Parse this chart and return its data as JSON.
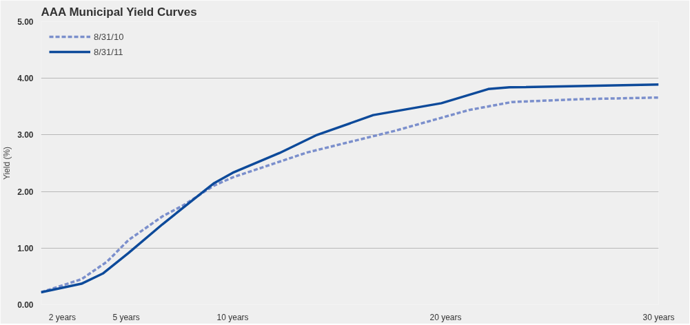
{
  "chart_data": {
    "type": "line",
    "title": "AAA Municipal Yield Curves",
    "ylabel": "Yield (%)",
    "xlim": [
      1,
      30
    ],
    "xticks": [
      {
        "value": 2,
        "label": "2 years"
      },
      {
        "value": 5,
        "label": "5 years"
      },
      {
        "value": 10,
        "label": "10 years"
      },
      {
        "value": 20,
        "label": "20 years"
      },
      {
        "value": 30,
        "label": "30 years"
      }
    ],
    "ylim": [
      0,
      5
    ],
    "yticks": [
      {
        "value": 0,
        "label": "0.00"
      },
      {
        "value": 1,
        "label": "1.00"
      },
      {
        "value": 2,
        "label": "2.00"
      },
      {
        "value": 3,
        "label": "3.00"
      },
      {
        "value": 4,
        "label": "4.00"
      },
      {
        "value": 5,
        "label": "5.00"
      }
    ],
    "grid": "y",
    "legend": "top left",
    "marker": "none",
    "series": [
      {
        "name": "8/31/10",
        "color": "#7b8fcc",
        "line_style": "dashed",
        "x": [
          1,
          2.9,
          4.1,
          5.1,
          6.7,
          7.7,
          9.1,
          10.0,
          13.5,
          17.6,
          21.1,
          23.1,
          26.2,
          30
        ],
        "values": [
          0.22,
          0.45,
          0.76,
          1.14,
          1.56,
          1.76,
          2.1,
          2.25,
          2.69,
          3.07,
          3.44,
          3.58,
          3.63,
          3.66
        ]
      },
      {
        "name": "8/31/11",
        "color": "#0d4a9a",
        "line_style": "solid",
        "x": [
          1,
          2.9,
          3.9,
          5.1,
          6.7,
          8.7,
          9.1,
          10.0,
          12.2,
          13.9,
          16.6,
          19.8,
          22.0,
          23.0,
          30
        ],
        "values": [
          0.22,
          0.37,
          0.55,
          0.91,
          1.42,
          2.02,
          2.14,
          2.33,
          2.68,
          2.99,
          3.35,
          3.56,
          3.81,
          3.84,
          3.89
        ]
      }
    ]
  }
}
